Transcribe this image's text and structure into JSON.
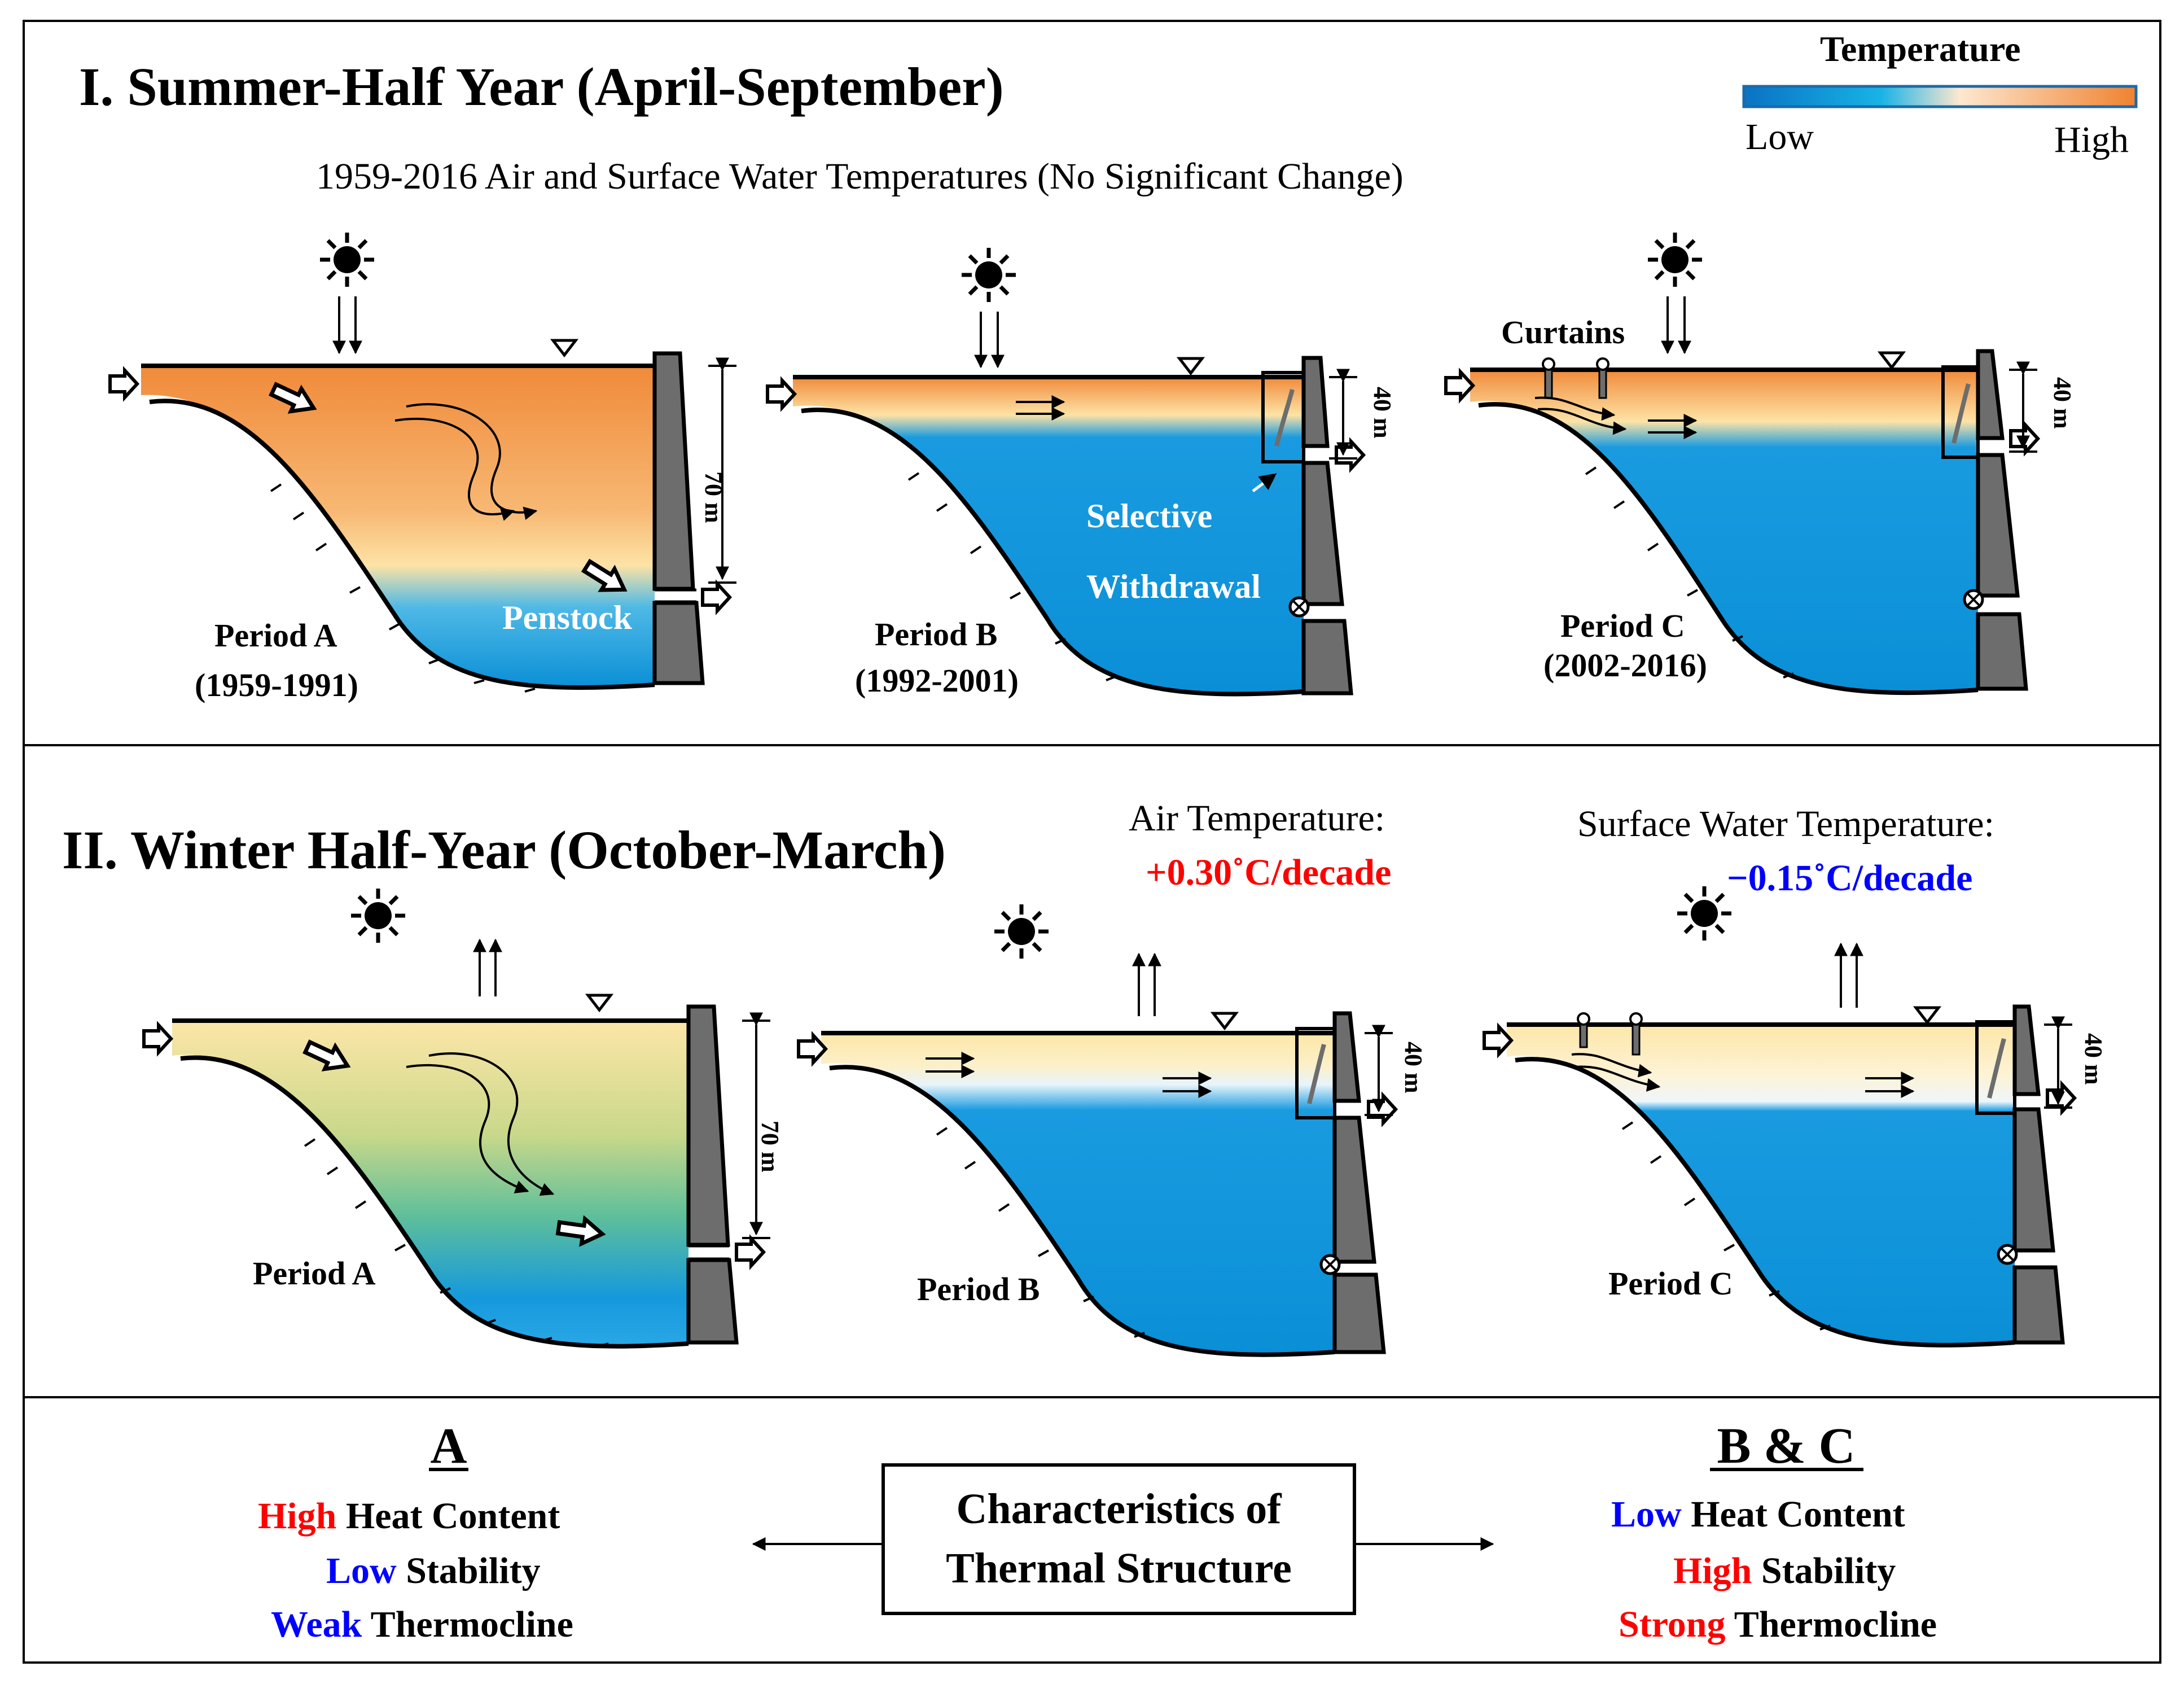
{
  "legend": {
    "title": "Temperature",
    "low": "Low",
    "high": "High"
  },
  "summer": {
    "title": "I. Summer-Half Year (April-September)",
    "subtitle": "1959-2016 Air and Surface Water Temperatures (No Significant Change)",
    "periodA": {
      "label": "Period A",
      "years": "(1959-1991)"
    },
    "periodB": {
      "label": "Period B",
      "years": "(1992-2001)"
    },
    "periodC": {
      "label": "Period C",
      "years": "(2002-2016)"
    },
    "penstock": "Penstock",
    "selective": "Selective",
    "withdrawal": "Withdrawal",
    "curtains": "Curtains",
    "depth70": "70 m",
    "depth40": "40 m"
  },
  "winter": {
    "title": "II. Winter Half-Year (October-March)",
    "air_label": "Air Temperature:",
    "air_value": "+0.30˚C/decade",
    "water_label": "Surface Water Temperature:",
    "water_value": "−0.15˚C/decade",
    "periodA": "Period A",
    "periodB": "Period B",
    "periodC": "Period C",
    "depth70": "70 m",
    "depth40": "40 m"
  },
  "characteristics": {
    "box": [
      "Characteristics of",
      "Thermal Structure"
    ],
    "A": {
      "heading": "A",
      "lines": [
        {
          "key": "High",
          "rest": " Heat Content"
        },
        {
          "key": "Low",
          "rest": " Stability"
        },
        {
          "key": "Weak",
          "rest": " Thermocline"
        }
      ]
    },
    "BC": {
      "heading": "B & C",
      "lines": [
        {
          "key": "Low",
          "rest": " Heat Content"
        },
        {
          "key": "High",
          "rest": " Stability"
        },
        {
          "key": "Strong",
          "rest": " Thermocline"
        }
      ]
    }
  },
  "colors": {
    "hot": "#f08a3a",
    "warm": "#fde3a6",
    "cold": "#0a8fd6",
    "red": "#ff0000",
    "blue": "#0000ff"
  }
}
